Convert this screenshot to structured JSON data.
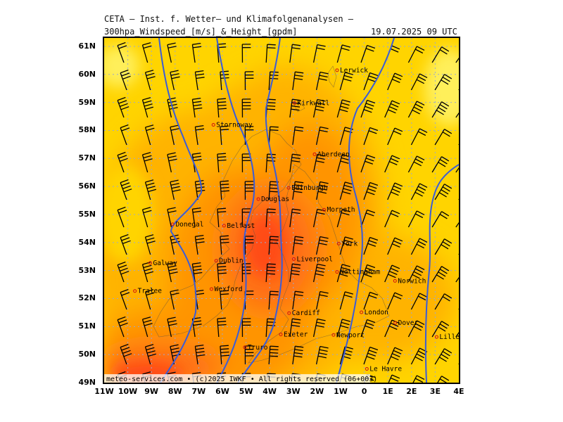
{
  "header": {
    "institute": "CETA — Inst. f. Wetter— und Klimafolgenanalysen —",
    "product": "300hpa_Windspeed_[m/s]_&_Height_[gpdm]",
    "valid": "19.07.2025 09 UTC"
  },
  "axes": {
    "lat_labels": [
      "61N",
      "60N",
      "59N",
      "58N",
      "57N",
      "56N",
      "55N",
      "54N",
      "53N",
      "52N",
      "51N",
      "50N",
      "49N"
    ],
    "lon_labels": [
      "11W",
      "10W",
      "9W",
      "8W",
      "7W",
      "6W",
      "5W",
      "4W",
      "3W",
      "2W",
      "1W",
      "0",
      "1E",
      "2E",
      "3E",
      "4E"
    ],
    "lat_range": [
      49,
      61.3
    ],
    "lon_range": [
      -11,
      4
    ]
  },
  "cities": [
    {
      "name": "Lerwick",
      "lon": -1.15,
      "lat": 60.15
    },
    {
      "name": "Kirkwall",
      "lon": -2.95,
      "lat": 58.98
    },
    {
      "name": "Stornoway",
      "lon": -6.38,
      "lat": 58.2
    },
    {
      "name": "Aberdeen",
      "lon": -2.1,
      "lat": 57.15
    },
    {
      "name": "Edinburgh",
      "lon": -3.2,
      "lat": 55.95
    },
    {
      "name": "Douglas",
      "lon": -4.48,
      "lat": 55.55
    },
    {
      "name": "Morpeth",
      "lon": -1.7,
      "lat": 55.17
    },
    {
      "name": "Donegal",
      "lon": -8.1,
      "lat": 54.65
    },
    {
      "name": "Belfast",
      "lon": -5.93,
      "lat": 54.6
    },
    {
      "name": "York",
      "lon": -1.08,
      "lat": 53.96
    },
    {
      "name": "Liverpool",
      "lon": -2.98,
      "lat": 53.41
    },
    {
      "name": "Galway",
      "lon": -9.05,
      "lat": 53.27
    },
    {
      "name": "Dublin",
      "lon": -6.26,
      "lat": 53.35
    },
    {
      "name": "Nottingham",
      "lon": -1.15,
      "lat": 52.95
    },
    {
      "name": "Norwich",
      "lon": 1.3,
      "lat": 52.63
    },
    {
      "name": "Wexford",
      "lon": -6.46,
      "lat": 52.34
    },
    {
      "name": "Tralee",
      "lon": -9.7,
      "lat": 52.27
    },
    {
      "name": "Cardiff",
      "lon": -3.18,
      "lat": 51.48
    },
    {
      "name": "London",
      "lon": -0.12,
      "lat": 51.51
    },
    {
      "name": "Dover",
      "lon": 1.31,
      "lat": 51.13
    },
    {
      "name": "Exeter",
      "lon": -3.53,
      "lat": 50.72
    },
    {
      "name": "Newport",
      "lon": -1.3,
      "lat": 50.7
    },
    {
      "name": "Lille",
      "lon": 3.06,
      "lat": 50.63
    },
    {
      "name": "Truro",
      "lon": -5.05,
      "lat": 50.26
    },
    {
      "name": "Le Havre",
      "lon": 0.11,
      "lat": 49.49
    }
  ],
  "colors": {
    "light": "#ffef5a",
    "yellow": "#ffd400",
    "gold": "#ffb300",
    "orange": "#ff9400",
    "dark_orange": "#ff6e18",
    "red_orange": "#ff4b14",
    "height_contour": "#3a5cd8",
    "grid": "#9aa7d0"
  },
  "credit": "meteo-services.com • (c)2025 IWKF • All rights reserved (06+003)"
}
